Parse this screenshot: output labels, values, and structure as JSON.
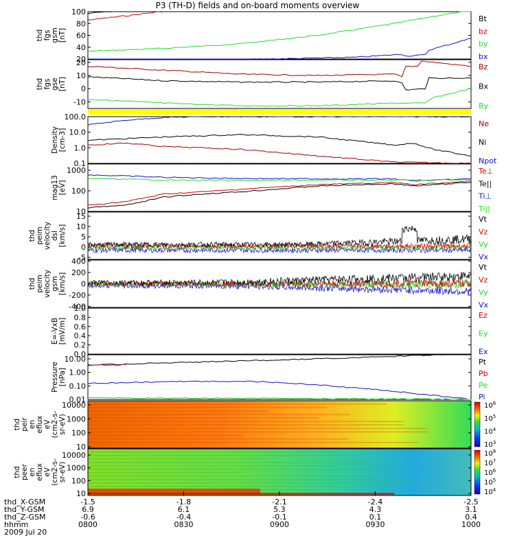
{
  "title": "P3 (TH-D) fields and on-board moments overview",
  "colors": {
    "black": "#000000",
    "red": "#cc0000",
    "green": "#22dd22",
    "blue": "#1010cc",
    "darkred": "#a00000",
    "yellow": "#ffff00"
  },
  "chart_data": [
    {
      "type": "line",
      "ylabel": [
        "thd",
        "fgs",
        "gsm",
        "[nT]"
      ],
      "ylim": [
        20,
        100
      ],
      "yticks": [
        "20",
        "40",
        "60",
        "80",
        "100"
      ],
      "legend": [
        {
          "label": "Bt",
          "color": "black"
        },
        {
          "label": "bz",
          "color": "red"
        },
        {
          "label": "by",
          "color": "green"
        },
        {
          "label": "bx",
          "color": "blue"
        }
      ],
      "series": [
        {
          "name": "Bt",
          "points": [
            [
              0,
              97
            ],
            [
              0.08,
              102
            ]
          ]
        },
        {
          "name": "bz",
          "points": [
            [
              0,
              86
            ],
            [
              0.1,
              93
            ],
            [
              0.2,
              101
            ]
          ]
        },
        {
          "name": "by",
          "points": [
            [
              0,
              33
            ],
            [
              0.2,
              38
            ],
            [
              0.4,
              46
            ],
            [
              0.6,
              60
            ],
            [
              0.8,
              80
            ],
            [
              0.9,
              92
            ],
            [
              1,
              102
            ]
          ]
        },
        {
          "name": "bx",
          "points": [
            [
              0,
              18
            ],
            [
              0.4,
              19
            ],
            [
              0.7,
              23
            ],
            [
              0.82,
              28
            ],
            [
              0.83,
              25
            ],
            [
              0.88,
              27
            ],
            [
              0.89,
              35
            ],
            [
              1,
              55
            ]
          ]
        }
      ]
    },
    {
      "type": "line",
      "ylabel": [
        "thd",
        "fgs",
        "gse",
        "[nT]"
      ],
      "ylim": [
        -15,
        22
      ],
      "yticks": [
        "-10",
        "0",
        "10",
        "20"
      ],
      "legend": [
        {
          "label": "Bz",
          "color": "darkred"
        },
        {
          "label": "Bx",
          "color": "black"
        },
        {
          "label": "By",
          "color": "green"
        }
      ],
      "series": [
        {
          "name": "Bz",
          "points": [
            [
              0,
              17
            ],
            [
              0.2,
              14
            ],
            [
              0.4,
              11
            ],
            [
              0.6,
              10
            ],
            [
              0.8,
              11
            ],
            [
              0.82,
              9
            ],
            [
              0.83,
              17
            ],
            [
              0.86,
              17
            ],
            [
              0.87,
              21
            ],
            [
              1,
              17
            ]
          ]
        },
        {
          "name": "Bx",
          "points": [
            [
              0,
              9
            ],
            [
              0.2,
              6
            ],
            [
              0.4,
              5
            ],
            [
              0.6,
              5
            ],
            [
              0.8,
              6
            ],
            [
              0.82,
              4
            ],
            [
              0.83,
              -1
            ],
            [
              0.88,
              0
            ],
            [
              0.89,
              8
            ],
            [
              1,
              8
            ]
          ]
        },
        {
          "name": "By",
          "points": [
            [
              0,
              -8
            ],
            [
              0.2,
              -11
            ],
            [
              0.4,
              -13
            ],
            [
              0.6,
              -13
            ],
            [
              0.8,
              -11
            ],
            [
              0.88,
              -11
            ],
            [
              0.9,
              -7
            ],
            [
              1,
              0
            ]
          ]
        }
      ]
    },
    {
      "type": "line",
      "ylabel": [
        "Density",
        "[cm-3]"
      ],
      "ylog": true,
      "ylim": [
        0.1,
        100
      ],
      "yticks": [
        "0.1",
        "1.0",
        "10.0",
        "100.0"
      ],
      "legend": [
        {
          "label": "Ne",
          "color": "darkred"
        },
        {
          "label": "Ni",
          "color": "black"
        },
        {
          "label": "Npot",
          "color": "blue"
        }
      ],
      "series": [
        {
          "name": "Npot",
          "points": [
            [
              0,
              30
            ],
            [
              0.1,
              60
            ],
            [
              0.2,
              90
            ],
            [
              0.3,
              100
            ],
            [
              1,
              100
            ]
          ]
        },
        {
          "name": "Ni",
          "points": [
            [
              0,
              3
            ],
            [
              0.2,
              5
            ],
            [
              0.4,
              7
            ],
            [
              0.6,
              5
            ],
            [
              0.8,
              1.5
            ],
            [
              0.85,
              2
            ],
            [
              0.9,
              0.8
            ],
            [
              1,
              0.3
            ]
          ]
        },
        {
          "name": "Ne",
          "points": [
            [
              0,
              1.5
            ],
            [
              0.1,
              2
            ],
            [
              0.2,
              1.2
            ],
            [
              0.4,
              0.8
            ],
            [
              0.6,
              0.3
            ],
            [
              0.8,
              0.12
            ],
            [
              1,
              0.1
            ]
          ]
        }
      ]
    },
    {
      "type": "line",
      "ylabel": [
        "mag13",
        "[eV]"
      ],
      "ylog": true,
      "ylim": [
        10,
        2000
      ],
      "yticks": [
        "10",
        "100",
        "1000"
      ],
      "legend": [
        {
          "label": "Te⊥",
          "color": "red"
        },
        {
          "label": "Te||",
          "color": "black"
        },
        {
          "label": "Ti⊥",
          "color": "blue"
        },
        {
          "label": "Ti||",
          "color": "green"
        }
      ],
      "series": [
        {
          "name": "Ti⊥",
          "points": [
            [
              0,
              600
            ],
            [
              0.2,
              450
            ],
            [
              0.4,
              400
            ],
            [
              0.6,
              380
            ],
            [
              0.8,
              380
            ],
            [
              0.85,
              300
            ],
            [
              1,
              380
            ]
          ]
        },
        {
          "name": "Ti||",
          "points": [
            [
              0,
              400
            ],
            [
              0.2,
              330
            ],
            [
              0.4,
              320
            ],
            [
              0.6,
              330
            ],
            [
              0.8,
              330
            ],
            [
              1,
              340
            ]
          ]
        },
        {
          "name": "Te⊥",
          "points": [
            [
              0,
              20
            ],
            [
              0.1,
              30
            ],
            [
              0.2,
              70
            ],
            [
              0.3,
              90
            ],
            [
              0.4,
              120
            ],
            [
              0.6,
              200
            ],
            [
              0.8,
              250
            ],
            [
              0.85,
              200
            ],
            [
              1,
              290
            ]
          ]
        },
        {
          "name": "Te||",
          "points": [
            [
              0,
              15
            ],
            [
              0.1,
              20
            ],
            [
              0.2,
              50
            ],
            [
              0.3,
              70
            ],
            [
              0.4,
              90
            ],
            [
              0.6,
              170
            ],
            [
              0.8,
              220
            ],
            [
              0.85,
              170
            ],
            [
              1,
              260
            ]
          ]
        }
      ]
    },
    {
      "type": "line",
      "ylabel": [
        "thd",
        "peim",
        "velocity",
        "dsl",
        "[km/s]"
      ],
      "ylim": [
        -6,
        17
      ],
      "yticks": [
        "-5",
        "0",
        "5",
        "10",
        "15"
      ],
      "legend": [
        {
          "label": "Vt",
          "color": "black"
        },
        {
          "label": "Vz",
          "color": "red"
        },
        {
          "label": "Vy",
          "color": "green"
        },
        {
          "label": "Vx",
          "color": "blue"
        }
      ],
      "series": []
    },
    {
      "type": "line",
      "ylabel": [
        "thd",
        "peim",
        "velocity",
        "gsm",
        "[km/s]"
      ],
      "ylim": [
        -420,
        420
      ],
      "yticks": [
        "-400",
        "-200",
        "0",
        "200",
        "400"
      ],
      "legend": [
        {
          "label": "Vt",
          "color": "black"
        },
        {
          "label": "Vz",
          "color": "red"
        },
        {
          "label": "Vy",
          "color": "green"
        },
        {
          "label": "Vx",
          "color": "blue"
        }
      ],
      "series": []
    },
    {
      "type": "line",
      "ylabel": [
        "E=-VxB",
        "[mV/m]"
      ],
      "ylim": [
        0,
        1
      ],
      "yticks": [
        "0.0",
        "0.2",
        "0.4",
        "0.6",
        "0.8",
        "1.0"
      ],
      "legend": [
        {
          "label": "Ez",
          "color": "red"
        },
        {
          "label": "Ey",
          "color": "green"
        },
        {
          "label": "Ex",
          "color": "blue"
        }
      ],
      "series": []
    },
    {
      "type": "line",
      "ylabel": [
        "Pressure",
        "[nPa]"
      ],
      "ylog": true,
      "ylim": [
        0.01,
        20
      ],
      "yticks": [
        "0.01",
        "0.10",
        "1.00",
        "10.00"
      ],
      "legend": [
        {
          "label": "Pt",
          "color": "black"
        },
        {
          "label": "Pb",
          "color": "red"
        },
        {
          "label": "Pe",
          "color": "green"
        },
        {
          "label": "Pi",
          "color": "blue"
        }
      ],
      "series": [
        {
          "name": "Pt",
          "points": [
            [
              0,
              3.5
            ],
            [
              0.2,
              5
            ],
            [
              0.4,
              7
            ],
            [
              0.6,
              10
            ],
            [
              0.8,
              15
            ],
            [
              0.9,
              20
            ],
            [
              1,
              22
            ]
          ]
        },
        {
          "name": "Pb",
          "points": [
            [
              0,
              3.3
            ],
            [
              0.1,
              3.8
            ]
          ]
        },
        {
          "name": "Pi",
          "points": [
            [
              0,
              0.15
            ],
            [
              0.2,
              0.2
            ],
            [
              0.4,
              0.22
            ],
            [
              0.5,
              0.18
            ],
            [
              0.6,
              0.12
            ],
            [
              0.7,
              0.07
            ],
            [
              0.8,
              0.04
            ],
            [
              0.9,
              0.02
            ],
            [
              1,
              0.01
            ]
          ]
        },
        {
          "name": "Pe",
          "points": [
            [
              0,
              0.013
            ],
            [
              0.4,
              0.012
            ],
            [
              0.8,
              0.011
            ],
            [
              1,
              0.01
            ]
          ]
        }
      ]
    },
    {
      "type": "heatmap",
      "ylabel": [
        "thd",
        "peir",
        "en",
        "eflux",
        "eV",
        "(cm2-s-",
        "sr-eV)"
      ],
      "ylog": true,
      "ylim": [
        8,
        20000
      ],
      "yticks": [
        "10",
        "100",
        "1000",
        "10000"
      ],
      "colorbar_ticks": [
        "10^3",
        "10^4",
        "10^5",
        "10^6"
      ]
    },
    {
      "type": "heatmap",
      "ylabel": [
        "thd",
        "peer",
        "en",
        "eflux",
        "eV",
        "(cm2-s-",
        "sr-eV)"
      ],
      "ylog": true,
      "ylim": [
        7,
        30000
      ],
      "yticks": [
        "10",
        "100",
        "1000",
        "10000"
      ],
      "colorbar_ticks": [
        "10^4",
        "10^5",
        "10^6",
        "10^7",
        "10^8"
      ]
    }
  ],
  "xaxis": {
    "rows": [
      {
        "label": "thd_X-GSM",
        "values": [
          "-1.5",
          "-1.8",
          "-2.1",
          "-2.4",
          "-2.5"
        ]
      },
      {
        "label": "thd_Y-GSM",
        "values": [
          "6.9",
          "6.1",
          "5.3",
          "4.3",
          "3.1"
        ]
      },
      {
        "label": "thd_Z-GSM",
        "values": [
          "-0.6",
          "-0.4",
          "-0.1",
          "0.1",
          "0.4"
        ]
      },
      {
        "label": "hhmm",
        "values": [
          "0800",
          "0830",
          "0900",
          "0930",
          "1000"
        ]
      }
    ],
    "date": "2009 Jul 20"
  }
}
